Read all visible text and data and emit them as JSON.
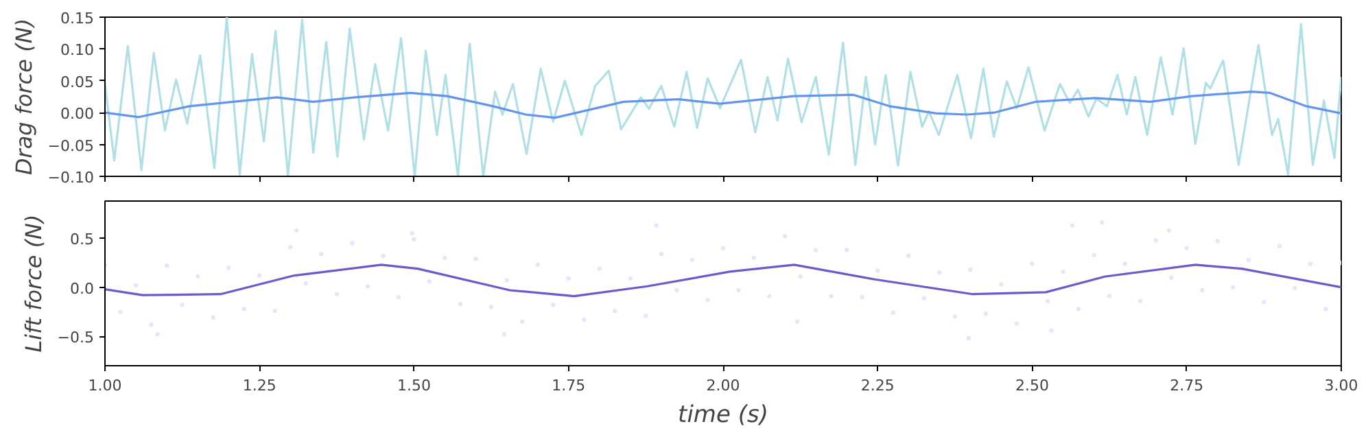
{
  "chart_data": [
    {
      "type": "line",
      "ylabel": "Drag force (N)",
      "xlim": [
        1.0,
        3.0
      ],
      "ylim": [
        -0.1,
        0.15
      ],
      "xticks": [
        {
          "value": 1.0,
          "label": null
        },
        {
          "value": 1.25,
          "label": null
        },
        {
          "value": 1.5,
          "label": null
        },
        {
          "value": 1.75,
          "label": null
        },
        {
          "value": 2.0,
          "label": null
        },
        {
          "value": 2.25,
          "label": null
        },
        {
          "value": 2.5,
          "label": null
        },
        {
          "value": 2.75,
          "label": null
        },
        {
          "value": 3.0,
          "label": null
        }
      ],
      "yticks": [
        {
          "value": -0.1,
          "label": "−0.10"
        },
        {
          "value": -0.05,
          "label": "−0.05"
        },
        {
          "value": 0.0,
          "label": "0.00"
        },
        {
          "value": 0.05,
          "label": "0.05"
        },
        {
          "value": 0.1,
          "label": "0.10"
        },
        {
          "value": 0.15,
          "label": "0.15"
        }
      ],
      "tick_labels": "y",
      "grid": false,
      "line_style": "solid",
      "series": [
        {
          "color": "#b0e0e6",
          "x": [
            1.0,
            1.015,
            1.037,
            1.059,
            1.079,
            1.097,
            1.115,
            1.133,
            1.154,
            1.177,
            1.197,
            1.218,
            1.238,
            1.257,
            1.276,
            1.296,
            1.319,
            1.337,
            1.358,
            1.376,
            1.396,
            1.419,
            1.437,
            1.458,
            1.479,
            1.501,
            1.519,
            1.537,
            1.551,
            1.571,
            1.59,
            1.612,
            1.631,
            1.643,
            1.66,
            1.682,
            1.705,
            1.725,
            1.744,
            1.771,
            1.793,
            1.815,
            1.835,
            1.867,
            1.88,
            1.9,
            1.921,
            1.941,
            1.958,
            1.975,
            1.995,
            2.029,
            2.052,
            2.072,
            2.088,
            2.105,
            2.127,
            2.15,
            2.171,
            2.194,
            2.214,
            2.231,
            2.246,
            2.263,
            2.283,
            2.303,
            2.322,
            2.333,
            2.349,
            2.379,
            2.401,
            2.421,
            2.438,
            2.459,
            2.475,
            2.494,
            2.52,
            2.545,
            2.561,
            2.574,
            2.591,
            2.604,
            2.621,
            2.638,
            2.653,
            2.667,
            2.686,
            2.708,
            2.727,
            2.745,
            2.764,
            2.781,
            2.788,
            2.809,
            2.834,
            2.866,
            2.888,
            2.898,
            2.914,
            2.935,
            2.954,
            2.972,
            2.989,
            3.0
          ],
          "values": [
            0.045,
            -0.075,
            0.104,
            -0.09,
            0.094,
            -0.028,
            0.052,
            -0.017,
            0.09,
            -0.087,
            0.149,
            -0.097,
            0.092,
            -0.045,
            0.128,
            -0.1,
            0.146,
            -0.063,
            0.111,
            -0.069,
            0.132,
            -0.042,
            0.076,
            -0.028,
            0.117,
            -0.1,
            0.097,
            -0.035,
            0.059,
            -0.1,
            0.108,
            -0.1,
            0.033,
            -0.003,
            0.045,
            -0.065,
            0.069,
            -0.014,
            0.05,
            -0.035,
            0.042,
            0.066,
            -0.026,
            0.024,
            0.006,
            0.042,
            -0.022,
            0.064,
            -0.024,
            0.054,
            0.007,
            0.083,
            -0.031,
            0.056,
            -0.012,
            0.085,
            -0.015,
            0.056,
            -0.066,
            0.11,
            -0.082,
            0.056,
            -0.05,
            0.059,
            -0.083,
            0.064,
            -0.022,
            0.002,
            -0.035,
            0.059,
            -0.04,
            0.069,
            -0.038,
            0.049,
            0.007,
            0.071,
            -0.028,
            0.045,
            0.015,
            0.036,
            -0.006,
            0.022,
            0.01,
            0.059,
            -0.003,
            0.056,
            -0.035,
            0.087,
            -0.003,
            0.101,
            -0.049,
            0.047,
            0.038,
            0.082,
            -0.082,
            0.106,
            -0.035,
            -0.01,
            -0.097,
            0.139,
            -0.082,
            0.019,
            -0.071,
            0.056
          ]
        },
        {
          "color": "#6495ed",
          "x": [
            1.0,
            1.054,
            1.136,
            1.278,
            1.337,
            1.404,
            1.494,
            1.554,
            1.628,
            1.681,
            1.728,
            1.839,
            1.928,
            1.995,
            2.114,
            2.211,
            2.27,
            2.344,
            2.394,
            2.438,
            2.505,
            2.602,
            2.691,
            2.758,
            2.855,
            2.885,
            2.944,
            3.0
          ],
          "values": [
            0.0,
            -0.007,
            0.01,
            0.024,
            0.017,
            0.024,
            0.031,
            0.026,
            0.01,
            -0.003,
            -0.008,
            0.017,
            0.021,
            0.014,
            0.026,
            0.028,
            0.01,
            -0.001,
            -0.003,
            0.0,
            0.017,
            0.023,
            0.017,
            0.026,
            0.033,
            0.031,
            0.01,
            -0.001
          ]
        }
      ]
    },
    {
      "type": "line",
      "xlabel": "time (s)",
      "ylabel": "Lift force (N)",
      "xlim": [
        1.0,
        3.0
      ],
      "ylim": [
        -0.8,
        0.88
      ],
      "xticks": [
        {
          "value": 1.0,
          "label": "1.00"
        },
        {
          "value": 1.25,
          "label": "1.25"
        },
        {
          "value": 1.5,
          "label": "1.50"
        },
        {
          "value": 1.75,
          "label": "1.75"
        },
        {
          "value": 2.0,
          "label": "2.00"
        },
        {
          "value": 2.25,
          "label": "2.25"
        },
        {
          "value": 2.5,
          "label": "2.50"
        },
        {
          "value": 2.75,
          "label": "2.75"
        },
        {
          "value": 3.0,
          "label": "3.00"
        }
      ],
      "yticks": [
        {
          "value": -0.5,
          "label": "−0.5"
        },
        {
          "value": 0.0,
          "label": "0.0"
        },
        {
          "value": 0.5,
          "label": "0.5"
        }
      ],
      "grid": false,
      "line_style": "solid",
      "series": [
        {
          "type": "scatter",
          "color": "#e6e6fa",
          "marker": "circle",
          "x": [
            1.0,
            1.025,
            1.05,
            1.075,
            1.1,
            1.125,
            1.15,
            1.175,
            1.2,
            1.225,
            1.25,
            1.275,
            1.3,
            1.325,
            1.35,
            1.375,
            1.4,
            1.425,
            1.45,
            1.475,
            1.5,
            1.525,
            1.55,
            1.575,
            1.6,
            1.625,
            1.65,
            1.675,
            1.7,
            1.725,
            1.75,
            1.775,
            1.8,
            1.825,
            1.85,
            1.875,
            1.9,
            1.925,
            1.95,
            1.975,
            2.0,
            2.025,
            2.05,
            2.075,
            2.1,
            2.125,
            2.15,
            2.175,
            2.2,
            2.225,
            2.25,
            2.275,
            2.3,
            2.325,
            2.35,
            2.375,
            2.4,
            2.425,
            2.45,
            2.475,
            2.5,
            2.525,
            2.55,
            2.575,
            2.6,
            2.625,
            2.65,
            2.675,
            2.7,
            2.725,
            2.75,
            2.775,
            2.8,
            2.825,
            2.85,
            2.875,
            2.9,
            2.925,
            2.95,
            2.975,
            3.0,
            1.31,
            1.497,
            1.892,
            1.085,
            1.646,
            2.613,
            2.565,
            2.397,
            2.531,
            2.12,
            2.721
          ],
          "values": [
            0.23,
            -0.25,
            0.02,
            -0.38,
            0.22,
            -0.18,
            0.11,
            -0.31,
            0.2,
            -0.22,
            0.12,
            -0.24,
            0.41,
            0.04,
            0.34,
            -0.07,
            0.45,
            0.01,
            0.32,
            -0.1,
            0.49,
            0.06,
            0.3,
            -0.17,
            0.29,
            -0.2,
            0.07,
            -0.35,
            0.23,
            -0.18,
            0.09,
            -0.33,
            0.19,
            -0.24,
            0.09,
            -0.29,
            0.34,
            -0.03,
            0.28,
            -0.13,
            0.4,
            -0.03,
            0.3,
            -0.09,
            0.52,
            0.11,
            0.38,
            -0.09,
            0.38,
            -0.1,
            0.17,
            -0.26,
            0.32,
            -0.11,
            0.15,
            -0.3,
            0.18,
            -0.27,
            0.03,
            -0.37,
            0.24,
            -0.14,
            0.16,
            -0.22,
            0.33,
            -0.09,
            0.24,
            -0.14,
            0.48,
            0.1,
            0.4,
            -0.03,
            0.47,
            0.0,
            0.28,
            -0.15,
            0.42,
            -0.01,
            0.24,
            -0.22,
            0.25,
            0.58,
            0.55,
            0.63,
            -0.48,
            -0.48,
            0.66,
            0.63,
            -0.52,
            -0.44,
            -0.35,
            0.58
          ]
        },
        {
          "color": "#6a5acd",
          "x": [
            1.0,
            1.061,
            1.187,
            1.306,
            1.447,
            1.506,
            1.655,
            1.759,
            1.877,
            2.011,
            2.115,
            2.246,
            2.404,
            2.522,
            2.618,
            2.764,
            2.839,
            3.0
          ],
          "values": [
            -0.02,
            -0.08,
            -0.07,
            0.12,
            0.23,
            0.19,
            -0.03,
            -0.09,
            0.01,
            0.16,
            0.23,
            0.08,
            -0.07,
            -0.05,
            0.11,
            0.23,
            0.19,
            0.0
          ]
        }
      ]
    }
  ]
}
